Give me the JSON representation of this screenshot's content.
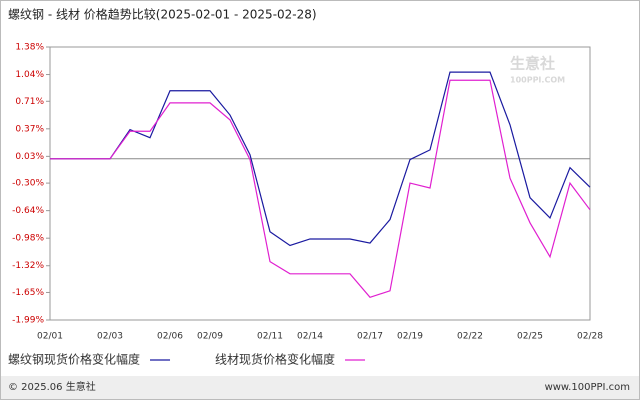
{
  "chart_data": {
    "type": "line",
    "title": "螺纹钢 - 线材 价格趋势比较(2025-02-01 - 2025-02-28)",
    "categories": [
      "02/01",
      null,
      null,
      "02/03",
      null,
      null,
      "02/06",
      null,
      "02/09",
      null,
      null,
      "02/11",
      null,
      "02/14",
      null,
      null,
      "02/17",
      null,
      "02/19",
      null,
      null,
      "02/22",
      null,
      null,
      "02/25",
      null,
      null,
      "02/28"
    ],
    "series": [
      {
        "name": "螺纹钢现货价格变化幅度",
        "color": "#1a1aa0",
        "values": [
          0,
          0,
          0,
          0,
          0.36,
          0.26,
          0.84,
          0.84,
          0.84,
          0.54,
          0.05,
          -0.9,
          -1.07,
          -0.99,
          -0.99,
          -0.99,
          -1.04,
          -0.75,
          -0.01,
          0.11,
          1.07,
          1.07,
          1.07,
          0.42,
          -0.48,
          -0.73,
          -0.11,
          -0.35
        ]
      },
      {
        "name": "线材现货价格变化幅度",
        "color": "#e020d0",
        "values": [
          0,
          0,
          0,
          0,
          0.34,
          0.34,
          0.69,
          0.69,
          0.69,
          0.48,
          -0.01,
          -1.27,
          -1.42,
          -1.42,
          -1.42,
          -1.42,
          -1.71,
          -1.63,
          -0.3,
          -0.36,
          0.97,
          0.97,
          0.97,
          -0.24,
          -0.79,
          -1.21,
          -0.3,
          -0.63
        ]
      }
    ],
    "ylim": [
      -1.99,
      1.38
    ],
    "yticks": [
      {
        "value": 1.38,
        "label": "1.38%"
      },
      {
        "value": 1.04,
        "label": "1.04%"
      },
      {
        "value": 0.71,
        "label": "0.71%"
      },
      {
        "value": 0.37,
        "label": "0.37%"
      },
      {
        "value": 0.03,
        "label": "0.03%"
      },
      {
        "value": -0.3,
        "label": "-0.30%"
      },
      {
        "value": -0.64,
        "label": "-0.64%"
      },
      {
        "value": -0.98,
        "label": "-0.98%"
      },
      {
        "value": -1.32,
        "label": "-1.32%"
      },
      {
        "value": -1.65,
        "label": "-1.65%"
      },
      {
        "value": -1.99,
        "label": "-1.99%"
      }
    ],
    "watermark": "生意社",
    "watermark_sub": "100PPI.COM",
    "footer_left": "© 2025.06 生意社",
    "footer_right": "www.100PPI.com"
  }
}
